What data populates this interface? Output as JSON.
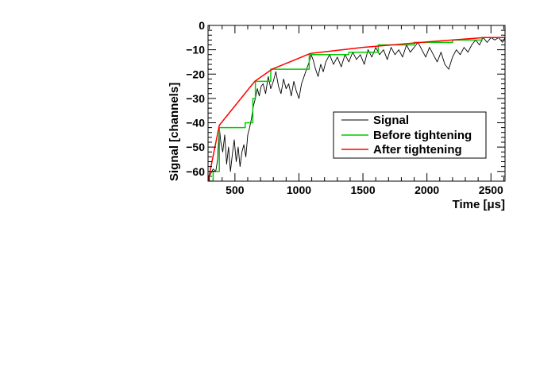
{
  "chart_data": {
    "type": "line",
    "xlabel": "Time  [μs]",
    "ylabel": "Signal  [channels]",
    "xlim": [
      290,
      2610
    ],
    "ylim": [
      -64,
      0
    ],
    "x_ticks": [
      "500",
      "1000",
      "1500",
      "2000",
      "2500"
    ],
    "x_tick_values": [
      500,
      1000,
      1500,
      2000,
      2500
    ],
    "y_ticks": [
      "0",
      "−10",
      "−20",
      "−30",
      "−40",
      "−50",
      "−60"
    ],
    "y_tick_values": [
      0,
      -10,
      -20,
      -30,
      -40,
      -50,
      -60
    ],
    "grid": false,
    "legend_position": "right",
    "series": [
      {
        "name": "Signal",
        "color": "#000000",
        "x": [
          290,
          310,
          330,
          350,
          365,
          378,
          390,
          405,
          420,
          435,
          450,
          465,
          480,
          495,
          510,
          525,
          540,
          555,
          570,
          585,
          600,
          615,
          630,
          645,
          660,
          675,
          690,
          705,
          720,
          740,
          760,
          780,
          800,
          820,
          840,
          860,
          880,
          900,
          920,
          940,
          960,
          980,
          1000,
          1020,
          1040,
          1060,
          1080,
          1095,
          1110,
          1130,
          1150,
          1170,
          1190,
          1210,
          1240,
          1270,
          1300,
          1330,
          1360,
          1390,
          1420,
          1450,
          1480,
          1510,
          1540,
          1570,
          1600,
          1630,
          1660,
          1690,
          1720,
          1750,
          1780,
          1810,
          1840,
          1870,
          1900,
          1930,
          1960,
          1990,
          2020,
          2050,
          2080,
          2110,
          2140,
          2170,
          2200,
          2230,
          2260,
          2290,
          2320,
          2350,
          2380,
          2410,
          2440,
          2470,
          2500,
          2530,
          2560,
          2590,
          2610
        ],
        "values": [
          -63,
          -61,
          -59,
          -60,
          -55,
          -42,
          -48,
          -52,
          -45,
          -57,
          -50,
          -60,
          -53,
          -47,
          -56,
          -50,
          -58,
          -52,
          -49,
          -54,
          -45,
          -42,
          -38,
          -33,
          -30,
          -26,
          -29,
          -25,
          -24,
          -28,
          -21,
          -26,
          -23,
          -19,
          -25,
          -28,
          -22,
          -26,
          -24,
          -29,
          -23,
          -27,
          -30,
          -24,
          -21,
          -18,
          -15,
          -12,
          -14,
          -18,
          -21,
          -16,
          -19,
          -15,
          -12,
          -16,
          -13,
          -17,
          -12,
          -15,
          -11,
          -14,
          -12,
          -16,
          -10,
          -13,
          -9,
          -12,
          -10,
          -14,
          -9,
          -12,
          -10,
          -13,
          -8,
          -11,
          -9,
          -7,
          -10,
          -13,
          -9,
          -12,
          -15,
          -11,
          -16,
          -18,
          -13,
          -10,
          -12,
          -9,
          -11,
          -8,
          -6,
          -8,
          -5,
          -7,
          -5,
          -6,
          -5,
          -7,
          -5
        ]
      },
      {
        "name": "Before tightening",
        "color": "#00cc00",
        "x": [
          290,
          330,
          330,
          378,
          378,
          580,
          580,
          640,
          640,
          660,
          660,
          780,
          780,
          1080,
          1080,
          1390,
          1390,
          1620,
          1620,
          1900,
          1900,
          2200,
          2200,
          2430,
          2430,
          2610
        ],
        "values": [
          -64,
          -64,
          -60,
          -60,
          -42,
          -42,
          -40,
          -40,
          -30,
          -30,
          -23,
          -23,
          -18,
          -18,
          -12,
          -12,
          -11,
          -11,
          -8,
          -8,
          -7,
          -7,
          -6,
          -6,
          -5,
          -5
        ]
      },
      {
        "name": "After tightening",
        "color": "#ff0000",
        "x": [
          290,
          378,
          655,
          790,
          1090,
          1500,
          2000,
          2450,
          2610
        ],
        "values": [
          -64,
          -41,
          -23,
          -18,
          -11.5,
          -9,
          -6.8,
          -5,
          -5
        ]
      }
    ]
  }
}
